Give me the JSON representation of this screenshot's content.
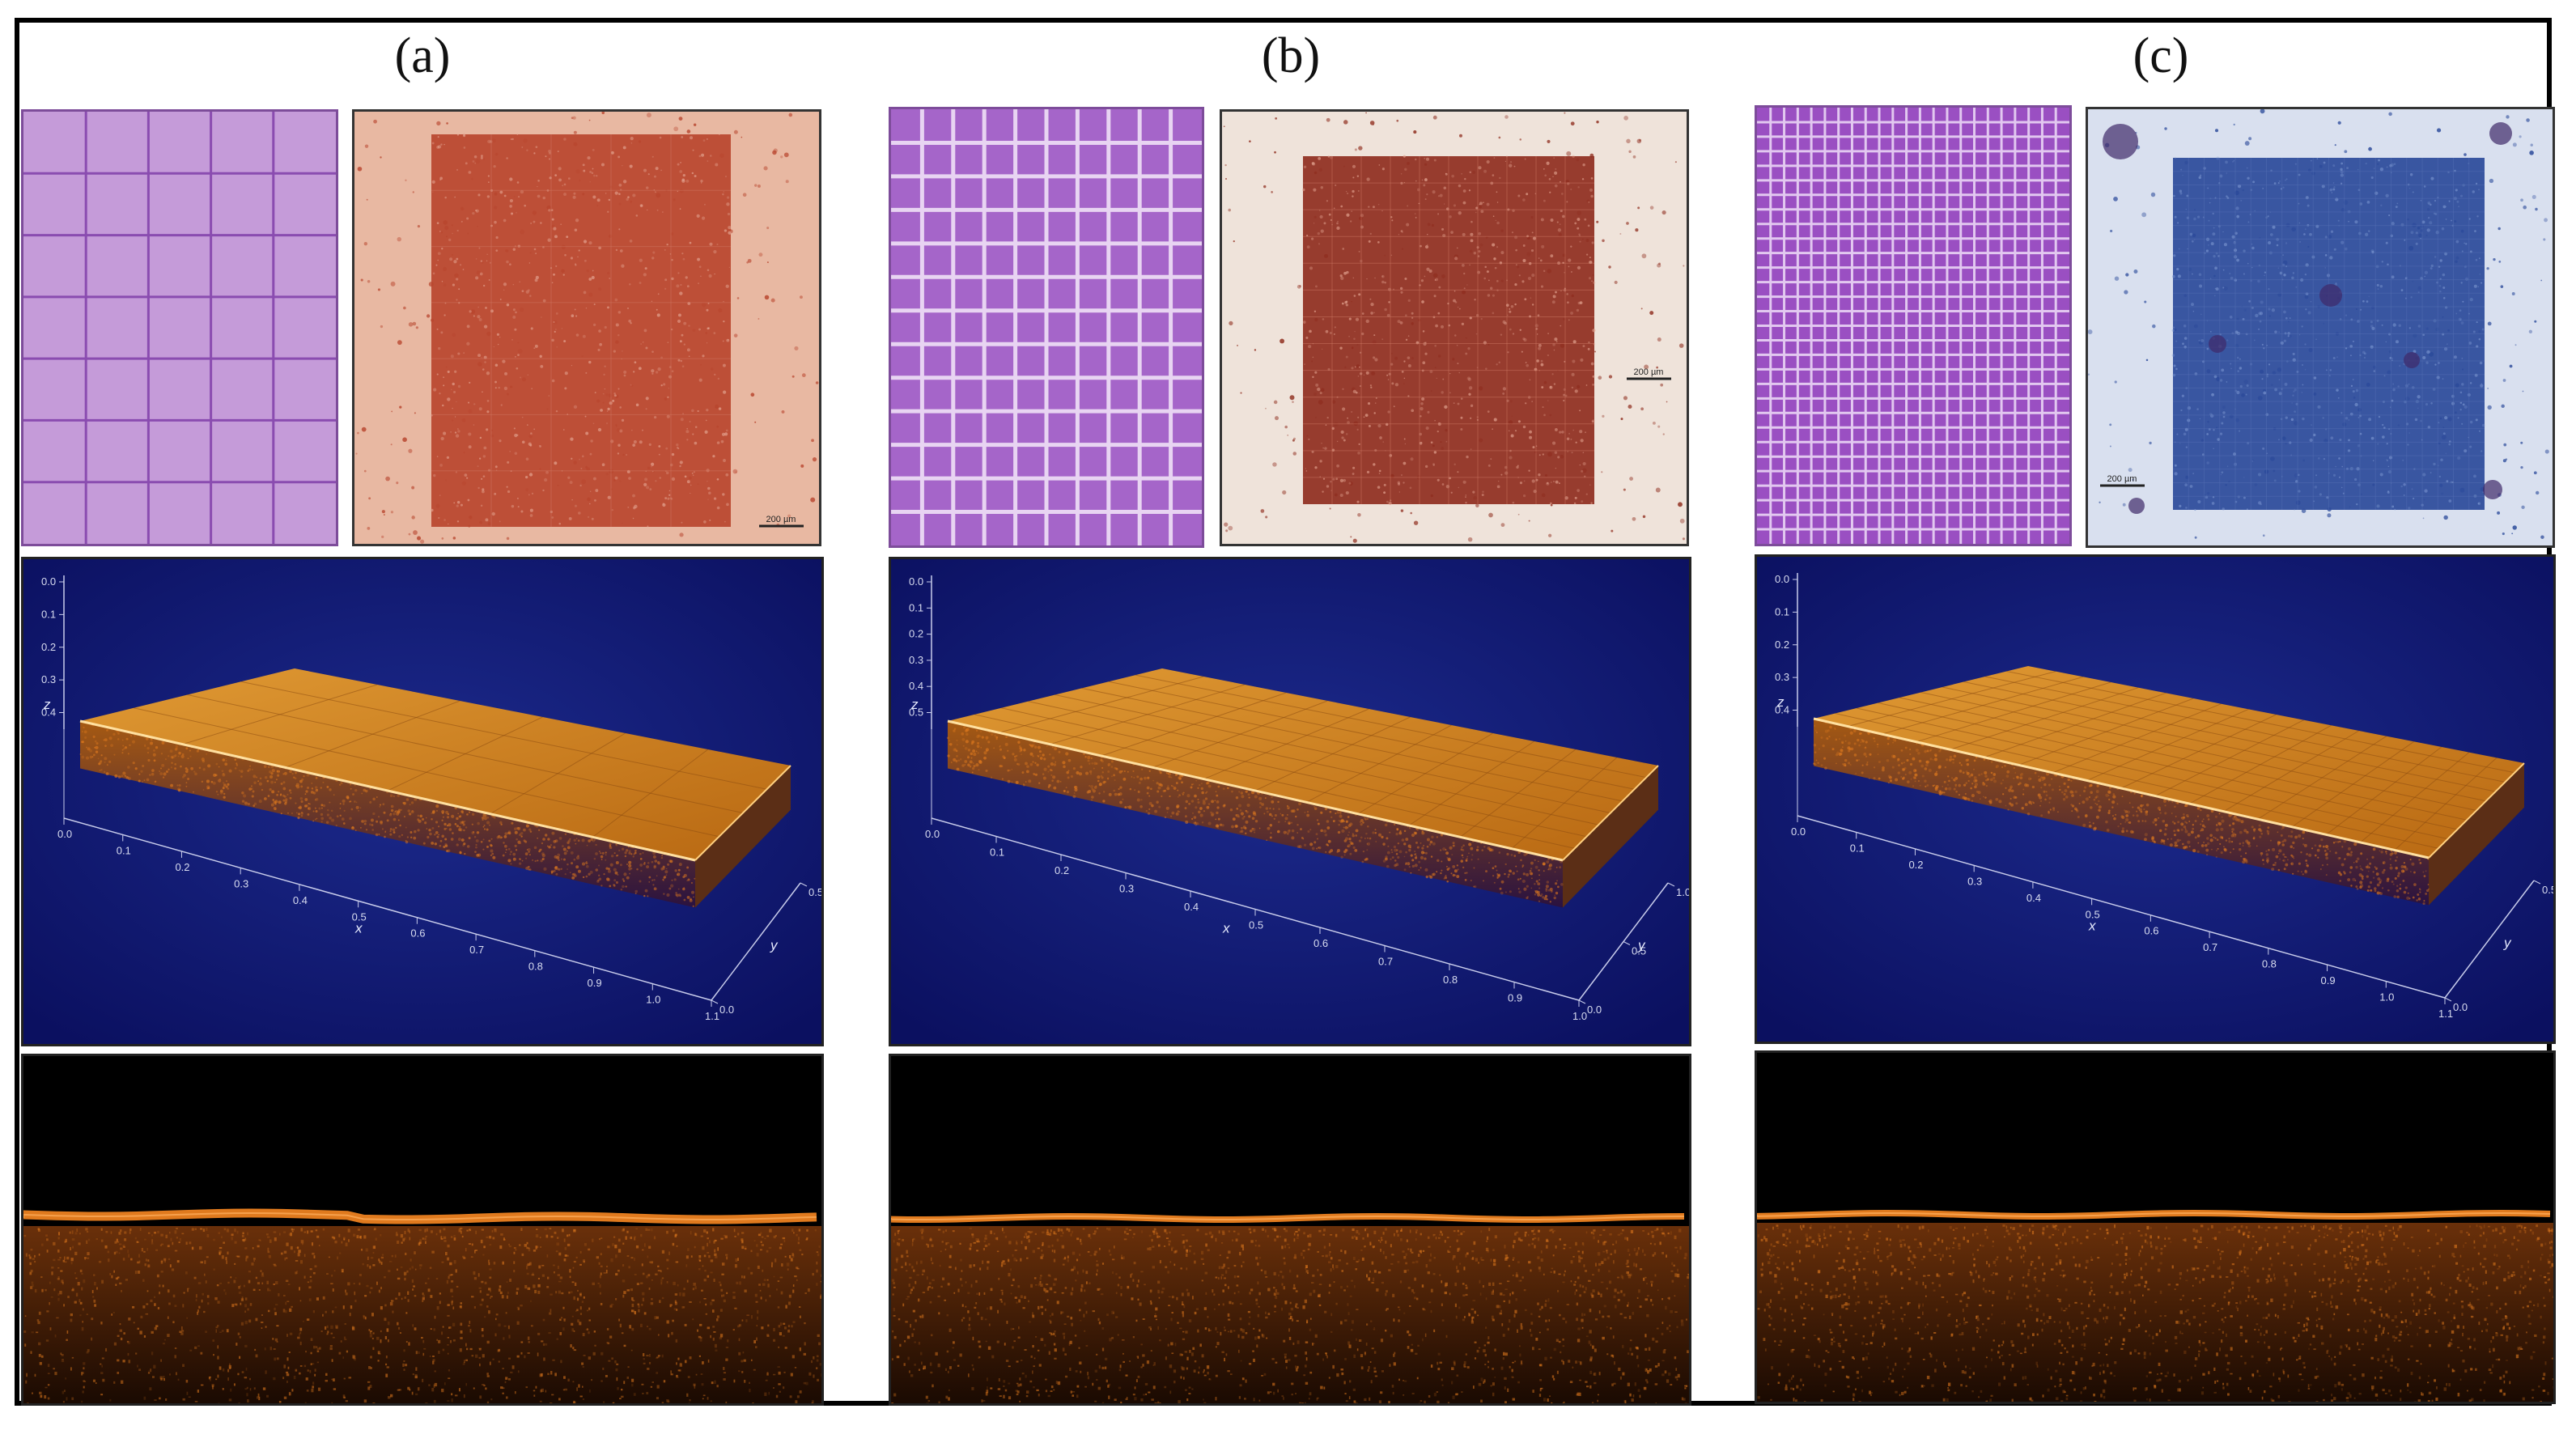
{
  "figure": {
    "columns": [
      {
        "label": "(a)",
        "grid": {
          "cols": 5,
          "rows": 7,
          "fill": "#c59bd9",
          "line": "#8a4cb0"
        },
        "micrograph": {
          "background": "#e8b8a2",
          "scaffold": "#b8452e",
          "scale_label": "200 µm"
        },
        "oct3d": {
          "z_ticks": [
            "0.0",
            "0.1",
            "0.2",
            "0.3",
            "0.4"
          ],
          "x_ticks": [
            "0.0",
            "0.1",
            "0.2",
            "0.3",
            "0.4",
            "0.5",
            "0.6",
            "0.7",
            "0.8",
            "0.9",
            "1.0",
            "1.1"
          ],
          "y_ticks": [
            "0.0",
            "0.5"
          ],
          "axis_x": "x",
          "axis_y": "y",
          "axis_z": "z"
        }
      },
      {
        "label": "(b)",
        "grid": {
          "cols": 10,
          "rows": 13,
          "fill": "#a565c9",
          "line": "#e8d4f2"
        },
        "micrograph": {
          "background": "#efe3da",
          "scaffold": "#8f2e1f",
          "scale_label": "200 µm"
        },
        "oct3d": {
          "z_ticks": [
            "0.0",
            "0.1",
            "0.2",
            "0.3",
            "0.4",
            "0.5"
          ],
          "x_ticks": [
            "0.0",
            "0.1",
            "0.2",
            "0.3",
            "0.4",
            "0.5",
            "0.6",
            "0.7",
            "0.8",
            "0.9",
            "1.0"
          ],
          "y_ticks": [
            "0.0",
            "0.5",
            "1.0"
          ],
          "axis_x": "x",
          "axis_y": "y",
          "axis_z": "z"
        }
      },
      {
        "label": "(c)",
        "grid": {
          "cols": 23,
          "rows": 30,
          "fill": "#9a4fc2",
          "line": "#e2c8f0"
        },
        "micrograph": {
          "background": "#d9e0ef",
          "scaffold": "#2b4a9a",
          "scale_label": "200 µm"
        },
        "oct3d": {
          "z_ticks": [
            "0.0",
            "0.1",
            "0.2",
            "0.3",
            "0.4"
          ],
          "x_ticks": [
            "0.0",
            "0.1",
            "0.2",
            "0.3",
            "0.4",
            "0.5",
            "0.6",
            "0.7",
            "0.8",
            "0.9",
            "1.0",
            "1.1"
          ],
          "y_ticks": [
            "0.0",
            "0.5"
          ],
          "axis_x": "x",
          "axis_y": "y",
          "axis_z": "z"
        }
      }
    ],
    "colors": {
      "oct_background": "#0b1060",
      "oct_slab_top": "#d8861c",
      "oct_slab_side": "#6e3a08",
      "bscan_band": "#e07a1e",
      "bscan_noise": "#7a3a0a"
    }
  }
}
